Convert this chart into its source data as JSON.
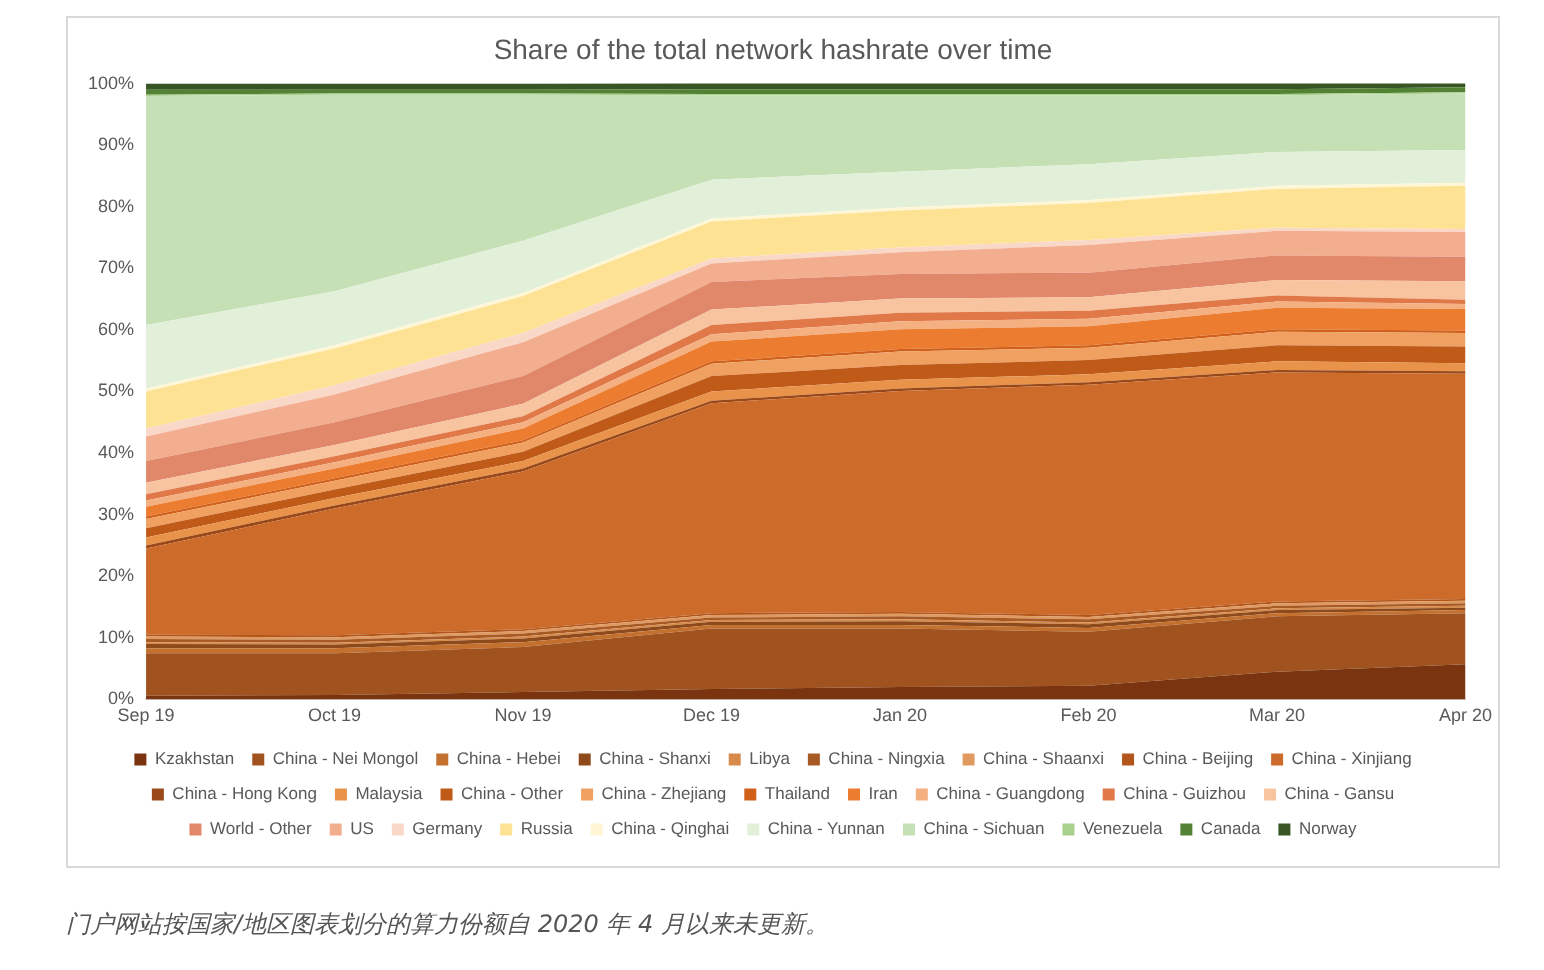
{
  "chart_data": {
    "type": "area",
    "title": "Share of the total network hashrate over time",
    "categories": [
      "Sep 19",
      "Oct 19",
      "Nov 19",
      "Dec 19",
      "Jan 20",
      "Feb 20",
      "Mar 20",
      "Apr 20"
    ],
    "stacked": true,
    "ylim": [
      0,
      100
    ],
    "yticks": [
      {
        "value": 0,
        "label": "0%"
      },
      {
        "value": 10,
        "label": "10%"
      },
      {
        "value": 20,
        "label": "20%"
      },
      {
        "value": 30,
        "label": "30%"
      },
      {
        "value": 40,
        "label": "40%"
      },
      {
        "value": 50,
        "label": "50%"
      },
      {
        "value": 60,
        "label": "60%"
      },
      {
        "value": 70,
        "label": "70%"
      },
      {
        "value": 80,
        "label": "80%"
      },
      {
        "value": 90,
        "label": "90%"
      },
      {
        "value": 100,
        "label": "100%"
      }
    ],
    "grid": false,
    "legend": "bottom",
    "annotations": [
      "门户网站按国家/地区图表划分的算力份额自 2020 年 4 月以来未更新。"
    ],
    "series": [
      {
        "name": "Kzakhstan",
        "color": "#7a3510",
        "values": [
          0.6,
          0.7,
          1.2,
          1.7,
          2.0,
          2.2,
          4.5,
          5.7
        ]
      },
      {
        "name": "China - Nei Mongol",
        "color": "#a0521f",
        "values": [
          6.9,
          6.8,
          7.3,
          9.8,
          9.5,
          8.8,
          9.0,
          8.3
        ]
      },
      {
        "name": "China - Hebei",
        "color": "#c4702e",
        "values": [
          0.8,
          0.8,
          0.8,
          0.6,
          0.6,
          0.6,
          0.5,
          0.5
        ]
      },
      {
        "name": "China - Shanxi",
        "color": "#8e4a1a",
        "values": [
          0.7,
          0.6,
          0.6,
          0.5,
          0.6,
          0.6,
          0.5,
          0.4
        ]
      },
      {
        "name": "Libya",
        "color": "#d88a4a",
        "values": [
          0.3,
          0.3,
          0.3,
          0.3,
          0.3,
          0.3,
          0.3,
          0.3
        ]
      },
      {
        "name": "China - Ningxia",
        "color": "#a85a25",
        "values": [
          0.5,
          0.5,
          0.5,
          0.4,
          0.5,
          0.5,
          0.4,
          0.4
        ]
      },
      {
        "name": "China - Shaanxi",
        "color": "#e09a60",
        "values": [
          0.4,
          0.4,
          0.4,
          0.4,
          0.4,
          0.4,
          0.4,
          0.4
        ]
      },
      {
        "name": "China - Beijing",
        "color": "#b3561c",
        "values": [
          0.3,
          0.3,
          0.3,
          0.3,
          0.3,
          0.3,
          0.3,
          0.3
        ]
      },
      {
        "name": "China - Xinjiang",
        "color": "#cd6b2b",
        "values": [
          14.0,
          20.6,
          25.6,
          34.1,
          35.9,
          37.4,
          37.2,
          36.6
        ]
      },
      {
        "name": "China - Hong Kong",
        "color": "#9a4818",
        "values": [
          0.5,
          0.5,
          0.5,
          0.4,
          0.4,
          0.4,
          0.4,
          0.4
        ]
      },
      {
        "name": "Malaysia",
        "color": "#e8924a",
        "values": [
          1.3,
          1.2,
          1.2,
          1.5,
          1.4,
          1.3,
          1.4,
          1.3
        ]
      },
      {
        "name": "China - Other",
        "color": "#c05a18",
        "values": [
          1.5,
          1.4,
          1.5,
          2.5,
          2.4,
          2.3,
          2.6,
          2.7
        ]
      },
      {
        "name": "China - Zhejiang",
        "color": "#f0a060",
        "values": [
          1.5,
          1.4,
          1.5,
          2.0,
          2.2,
          2.0,
          2.2,
          2.2
        ]
      },
      {
        "name": "Thailand",
        "color": "#d0601a",
        "values": [
          0.4,
          0.4,
          0.4,
          0.4,
          0.4,
          0.4,
          0.4,
          0.4
        ]
      },
      {
        "name": "Iran",
        "color": "#ec7c30",
        "values": [
          1.6,
          1.6,
          1.9,
          3.2,
          3.2,
          3.1,
          3.5,
          3.5
        ]
      },
      {
        "name": "China - Guangdong",
        "color": "#f4b080",
        "values": [
          1.0,
          1.0,
          1.0,
          1.2,
          1.3,
          1.2,
          1.0,
          0.8
        ]
      },
      {
        "name": "China - Guizhou",
        "color": "#e07848",
        "values": [
          1.0,
          1.0,
          1.0,
          1.5,
          1.4,
          1.3,
          1.0,
          0.7
        ]
      },
      {
        "name": "China - Gansu",
        "color": "#f8c4a0",
        "values": [
          1.9,
          1.8,
          2.0,
          2.5,
          2.3,
          2.2,
          2.5,
          3.0
        ]
      },
      {
        "name": "World - Other",
        "color": "#e2886a",
        "values": [
          3.5,
          3.7,
          4.5,
          4.5,
          4.0,
          4.0,
          4.0,
          4.0
        ]
      },
      {
        "name": "US",
        "color": "#f3ae90",
        "values": [
          4.0,
          4.5,
          5.5,
          3.0,
          3.5,
          4.5,
          4.0,
          4.0
        ]
      },
      {
        "name": "Germany",
        "color": "#fad8c8",
        "values": [
          1.3,
          1.5,
          1.5,
          0.8,
          0.8,
          0.8,
          0.5,
          0.5
        ]
      },
      {
        "name": "Russia",
        "color": "#fde293",
        "values": [
          6.0,
          6.0,
          6.0,
          6.0,
          6.0,
          6.0,
          6.3,
          7.0
        ]
      },
      {
        "name": "China - Qinghai",
        "color": "#fff6d6",
        "values": [
          0.5,
          0.5,
          0.5,
          0.5,
          0.5,
          0.5,
          0.5,
          0.5
        ]
      },
      {
        "name": "China - Yunnan",
        "color": "#e2efd9",
        "values": [
          10.3,
          8.8,
          8.5,
          6.3,
          5.8,
          5.8,
          5.5,
          5.3
        ]
      },
      {
        "name": "China - Sichuan",
        "color": "#c5e0b4",
        "values": [
          37.2,
          31.9,
          23.7,
          13.7,
          12.4,
          11.2,
          9.2,
          9.2
        ]
      },
      {
        "name": "Venezuela",
        "color": "#a9d18e",
        "values": [
          0.2,
          0.2,
          0.2,
          0.2,
          0.2,
          0.2,
          0.2,
          0.2
        ]
      },
      {
        "name": "Canada",
        "color": "#548235",
        "values": [
          0.8,
          0.6,
          0.6,
          0.8,
          0.8,
          0.8,
          0.8,
          0.8
        ]
      },
      {
        "name": "Norway",
        "color": "#375623",
        "values": [
          1.0,
          1.0,
          1.0,
          1.0,
          1.0,
          1.0,
          1.0,
          1.0
        ]
      }
    ]
  }
}
